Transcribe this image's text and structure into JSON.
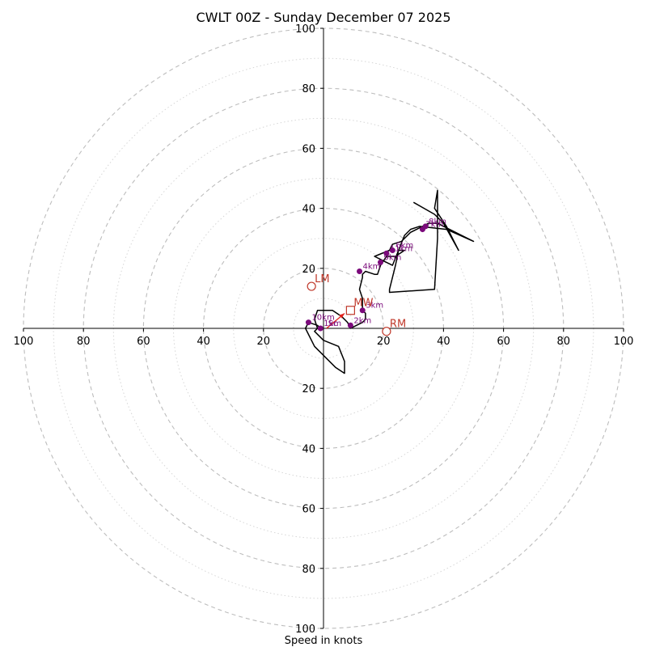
{
  "chart_data": {
    "type": "hodograph",
    "title": "CWLT 00Z - Sunday December 07 2025",
    "xlabel": "Speed in knots",
    "rmax": 100,
    "major_rings": [
      20,
      40,
      60,
      80,
      100
    ],
    "minor_rings": [
      10,
      30,
      50,
      70,
      90
    ],
    "x_tick_labels": [
      {
        "v": -100,
        "t": "100"
      },
      {
        "v": -80,
        "t": "80"
      },
      {
        "v": -60,
        "t": "60"
      },
      {
        "v": -40,
        "t": "40"
      },
      {
        "v": -20,
        "t": "20"
      },
      {
        "v": 20,
        "t": "20"
      },
      {
        "v": 40,
        "t": "40"
      },
      {
        "v": 60,
        "t": "60"
      },
      {
        "v": 80,
        "t": "80"
      },
      {
        "v": 100,
        "t": "100"
      }
    ],
    "y_tick_labels": [
      {
        "v": 100,
        "t": "100"
      },
      {
        "v": 80,
        "t": "80"
      },
      {
        "v": 60,
        "t": "60"
      },
      {
        "v": 40,
        "t": "40"
      },
      {
        "v": 20,
        "t": "20"
      },
      {
        "v": -20,
        "t": "20"
      },
      {
        "v": -40,
        "t": "40"
      },
      {
        "v": -60,
        "t": "60"
      },
      {
        "v": -80,
        "t": "80"
      },
      {
        "v": -100,
        "t": "100"
      }
    ],
    "hodograph_uv": [
      [
        -1,
        0
      ],
      [
        -2,
        1
      ],
      [
        -5,
        2
      ],
      [
        -6,
        0
      ],
      [
        -3,
        -6
      ],
      [
        4,
        -13
      ],
      [
        7,
        -15
      ],
      [
        7,
        -11
      ],
      [
        5,
        -6
      ],
      [
        0,
        -4
      ],
      [
        -3,
        -1
      ],
      [
        -2,
        0
      ],
      [
        -3,
        3
      ],
      [
        -2,
        6
      ],
      [
        3,
        6
      ],
      [
        6,
        4
      ],
      [
        8,
        2
      ],
      [
        9,
        0
      ],
      [
        11,
        1
      ],
      [
        13,
        2
      ],
      [
        14,
        3
      ],
      [
        14,
        5
      ],
      [
        13,
        6
      ],
      [
        13,
        10
      ],
      [
        12,
        13
      ],
      [
        13,
        17
      ],
      [
        13,
        18
      ],
      [
        14,
        19
      ],
      [
        17,
        18
      ],
      [
        18,
        18
      ],
      [
        19,
        21
      ],
      [
        21,
        24
      ],
      [
        24,
        24
      ],
      [
        27,
        26
      ],
      [
        25,
        26
      ],
      [
        23,
        21
      ],
      [
        21,
        22
      ],
      [
        17,
        24
      ],
      [
        22,
        26
      ],
      [
        23,
        28
      ],
      [
        26,
        29
      ],
      [
        29,
        32
      ],
      [
        33,
        34
      ],
      [
        35,
        35
      ],
      [
        38,
        35
      ],
      [
        42,
        33
      ],
      [
        46,
        31
      ],
      [
        50,
        29
      ],
      [
        41,
        33
      ],
      [
        32,
        34
      ],
      [
        29,
        33
      ],
      [
        27,
        31
      ],
      [
        25,
        26
      ],
      [
        24,
        21
      ],
      [
        23,
        17
      ],
      [
        22,
        13
      ],
      [
        22,
        12
      ],
      [
        37,
        13
      ],
      [
        38,
        30
      ],
      [
        38,
        46
      ],
      [
        37,
        40
      ],
      [
        41,
        34
      ],
      [
        43,
        30
      ],
      [
        45,
        26
      ],
      [
        40,
        35
      ],
      [
        37,
        38
      ],
      [
        30,
        42
      ]
    ],
    "height_points": [
      {
        "u": -1,
        "v": 0,
        "label": "1km"
      },
      {
        "u": 9,
        "v": 1,
        "label": "2km"
      },
      {
        "u": 13,
        "v": 6,
        "label": "3km"
      },
      {
        "u": 12,
        "v": 19,
        "label": "4km"
      },
      {
        "u": 19,
        "v": 22,
        "label": "9km"
      },
      {
        "u": 21,
        "v": 25,
        "label": "11km"
      },
      {
        "u": 23,
        "v": 26,
        "label": "6km"
      },
      {
        "u": 33,
        "v": 33,
        "label": "7km"
      },
      {
        "u": 34,
        "v": 34,
        "label": "8km"
      },
      {
        "u": -5,
        "v": 2,
        "label": "10km"
      }
    ],
    "storm_motion": [
      {
        "name": "LM",
        "u": -4,
        "v": 14
      },
      {
        "name": "RM",
        "u": 21,
        "v": -1
      },
      {
        "name": "MW",
        "u": 9,
        "v": 6
      }
    ],
    "shear_arrow": {
      "from_u": 1,
      "from_v": 0,
      "to_u": 7,
      "to_v": 5,
      "label": "Sc"
    }
  }
}
